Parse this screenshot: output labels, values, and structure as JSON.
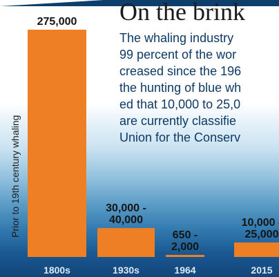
{
  "headline": "On the brink",
  "story_lines": [
    "The whaling industry",
    "99 percent of the wor",
    "creased since the 196",
    "the hunting of blue wh",
    "ed that 10,000 to 25,0",
    "are currently classifie",
    "Union for the Conserv"
  ],
  "colors": {
    "bar": "#ef7f24",
    "background_bottom": "#12467a",
    "category_label": "#dbeaf6"
  },
  "chart_data": {
    "type": "bar",
    "title": "",
    "xlabel": "",
    "ylabel": "",
    "categories": [
      "1800s",
      "1930s",
      "1964",
      "2015"
    ],
    "values": [
      275000,
      35000,
      1325,
      17500
    ],
    "value_labels": [
      [
        "275,000"
      ],
      [
        "30,000 -",
        "40,000"
      ],
      [
        "650 -",
        "2,000"
      ],
      [
        "10,000 -",
        "25,000"
      ]
    ],
    "annotations": [
      "Prior to 19th century whaling"
    ],
    "ylim": [
      0,
      275000
    ],
    "grid": false,
    "legend": "none"
  }
}
